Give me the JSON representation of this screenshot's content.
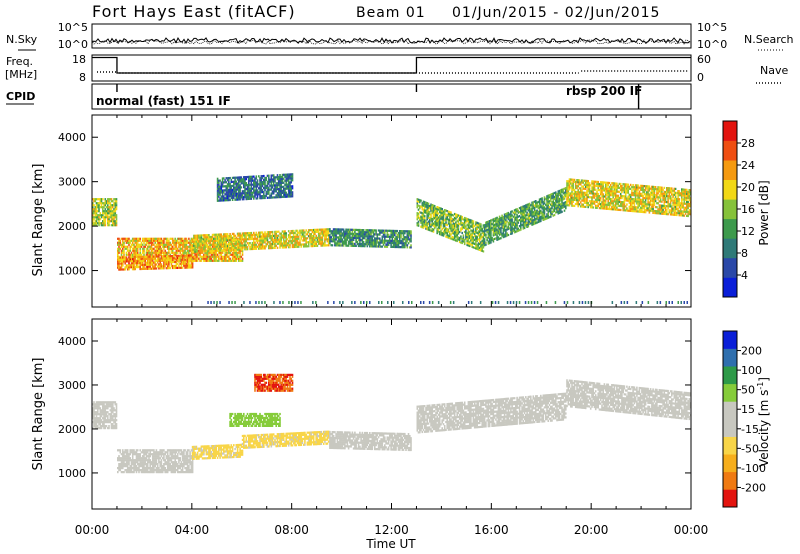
{
  "header": {
    "station": "Fort Hays East (fitACF)",
    "beam": "Beam 01",
    "date_range": "01/Jun/2015 - 02/Jun/2015"
  },
  "top_panels": {
    "nsky_label": "N.Sky",
    "nsearch_label": "N.Search",
    "noise_ticks_left": [
      "10^5",
      "10^0"
    ],
    "noise_ticks_right": [
      "10^5",
      "10^0"
    ],
    "freq_label": "Freq.",
    "freq_unit": "[MHz]",
    "freq_ticks": [
      "18",
      "8"
    ],
    "nave_label": "Nave",
    "nave_ticks": [
      "60",
      "0"
    ],
    "cpid_label": "CPID",
    "cpid_mode_1": "normal (fast) 151 IF",
    "cpid_mode_2": "rbsp 200 IF",
    "cpid_switch_hours": [
      1.0,
      13.0,
      21.9
    ]
  },
  "colors": {
    "power_scale": [
      "#0a1fd8",
      "#2a48a8",
      "#2f7a78",
      "#3d9a4c",
      "#86c23a",
      "#f2d816",
      "#f59a10",
      "#ef4e12",
      "#e3140f"
    ],
    "velocity_scale": [
      "#e3140f",
      "#f07a12",
      "#f6ae1c",
      "#f8d548",
      "#c8c8c0",
      "#c8c8c0",
      "#86cc3a",
      "#2e9a48",
      "#2f6fae",
      "#0a1fd8"
    ]
  },
  "chart_data": [
    {
      "type": "heatmap",
      "name_of_panel": "power",
      "xlabel": "",
      "ylabel": "Slant Range [km]",
      "x_domain_hours": [
        0,
        24
      ],
      "ylim": [
        180,
        4500
      ],
      "yticks": [
        "1000",
        "2000",
        "3000",
        "4000"
      ],
      "colorbar": {
        "label": "Power [dB]",
        "ticks": [
          "4",
          "8",
          "12",
          "16",
          "20",
          "24",
          "28"
        ],
        "range": [
          0,
          30
        ]
      },
      "echo_bands": [
        {
          "t_start": 0.0,
          "t_end": 1.0,
          "range_center": [
            2300,
            2300
          ],
          "half_width": 300,
          "value": 16
        },
        {
          "t_start": 1.0,
          "t_end": 6.0,
          "range_center": [
            1450,
            1450
          ],
          "half_width": 250,
          "value": 20
        },
        {
          "t_start": 1.0,
          "t_end": 4.0,
          "range_center": [
            1150,
            1200
          ],
          "half_width": 150,
          "value": 22
        },
        {
          "t_start": 4.0,
          "t_end": 9.5,
          "range_center": [
            1600,
            1750
          ],
          "half_width": 200,
          "value": 18
        },
        {
          "t_start": 5.0,
          "t_end": 8.0,
          "range_center": [
            2800,
            2900
          ],
          "half_width": 250,
          "value": 8
        },
        {
          "t_start": 9.5,
          "t_end": 12.8,
          "range_center": [
            1750,
            1700
          ],
          "half_width": 200,
          "value": 10
        },
        {
          "t_start": 13.0,
          "t_end": 15.7,
          "range_center": [
            2300,
            1700
          ],
          "half_width": 300,
          "value": 14
        },
        {
          "t_start": 15.7,
          "t_end": 19.0,
          "range_center": [
            1800,
            2600
          ],
          "half_width": 250,
          "value": 12
        },
        {
          "t_start": 19.0,
          "t_end": 24.0,
          "range_center": [
            2750,
            2500
          ],
          "half_width": 300,
          "value": 18
        }
      ]
    },
    {
      "type": "heatmap",
      "name_of_panel": "velocity",
      "xlabel": "Time UT",
      "ylabel": "Slant Range [km]",
      "x_domain_hours": [
        0,
        24
      ],
      "ylim": [
        180,
        4500
      ],
      "yticks": [
        "1000",
        "2000",
        "3000",
        "4000"
      ],
      "xticks": [
        "00:00",
        "04:00",
        "08:00",
        "12:00",
        "16:00",
        "20:00",
        "00:00"
      ],
      "colorbar": {
        "label": "Velocity [m s",
        "label_sup": "-1",
        "label_end": "]",
        "ticks": [
          "-200",
          "-100",
          "-50",
          "-15",
          "15",
          "50",
          "100",
          "200"
        ],
        "range": [
          -250,
          250
        ]
      },
      "echo_bands": [
        {
          "t_start": 0.0,
          "t_end": 1.0,
          "range_center": [
            2300,
            2300
          ],
          "half_width": 300,
          "value": 0
        },
        {
          "t_start": 1.0,
          "t_end": 4.0,
          "range_center": [
            1250,
            1250
          ],
          "half_width": 250,
          "value": -30
        },
        {
          "t_start": 4.0,
          "t_end": 6.0,
          "range_center": [
            1450,
            1500
          ],
          "half_width": 150,
          "value": -60
        },
        {
          "t_start": 6.0,
          "t_end": 9.5,
          "range_center": [
            1700,
            1800
          ],
          "half_width": 150,
          "value": -60
        },
        {
          "t_start": 5.5,
          "t_end": 7.5,
          "range_center": [
            2200,
            2200
          ],
          "half_width": 150,
          "value": 80
        },
        {
          "t_start": 6.5,
          "t_end": 8.0,
          "range_center": [
            3050,
            3050
          ],
          "half_width": 200,
          "value": -200
        },
        {
          "t_start": 9.5,
          "t_end": 12.8,
          "range_center": [
            1750,
            1700
          ],
          "half_width": 200,
          "value": 0
        },
        {
          "t_start": 13.0,
          "t_end": 19.0,
          "range_center": [
            2200,
            2500
          ],
          "half_width": 300,
          "value": 0
        },
        {
          "t_start": 19.0,
          "t_end": 24.0,
          "range_center": [
            2800,
            2500
          ],
          "half_width": 300,
          "value": 0
        }
      ]
    }
  ]
}
